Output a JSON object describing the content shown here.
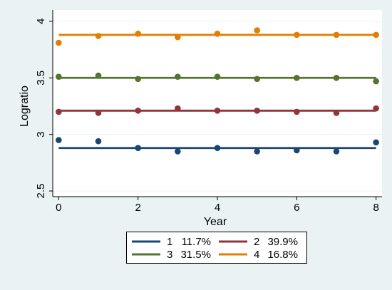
{
  "chart_data": {
    "type": "scatter",
    "title": "",
    "xlabel": "Year",
    "ylabel": "Logratio",
    "xlim": [
      -0.15,
      8.15
    ],
    "ylim": [
      2.45,
      4.1
    ],
    "xticks": [
      0,
      2,
      4,
      6,
      8
    ],
    "xtick_labels": [
      "0",
      "2",
      "4",
      "6",
      "8"
    ],
    "yticks": [
      2.5,
      3,
      3.5,
      4
    ],
    "ytick_labels": [
      "2.5",
      "3",
      "3.5",
      "4"
    ],
    "grid": "horizontal",
    "legend_position": "bottom",
    "x": [
      0,
      1,
      2,
      3,
      4,
      5,
      6,
      7,
      8
    ],
    "series": [
      {
        "name": "1",
        "share": "11.7%",
        "color": "#1a476f",
        "points": [
          2.95,
          2.94,
          2.88,
          2.85,
          2.88,
          2.85,
          2.86,
          2.85,
          2.93
        ],
        "fit": 2.88
      },
      {
        "name": "2",
        "share": "39.9%",
        "color": "#90353b",
        "points": [
          3.2,
          3.19,
          3.21,
          3.23,
          3.21,
          3.21,
          3.2,
          3.19,
          3.23
        ],
        "fit": 3.21
      },
      {
        "name": "3",
        "share": "31.5%",
        "color": "#55752f",
        "points": [
          3.51,
          3.52,
          3.49,
          3.51,
          3.51,
          3.49,
          3.5,
          3.5,
          3.47
        ],
        "fit": 3.5
      },
      {
        "name": "4",
        "share": "16.8%",
        "color": "#e37e00",
        "points": [
          3.81,
          3.87,
          3.89,
          3.86,
          3.89,
          3.92,
          3.88,
          3.88,
          3.88
        ],
        "fit": 3.88
      }
    ]
  },
  "colors": {
    "background": "#eaf2f3",
    "plot_background": "#ffffff",
    "grid": "#eaf2f3",
    "axis": "#000000",
    "legend_border": "#000000"
  }
}
